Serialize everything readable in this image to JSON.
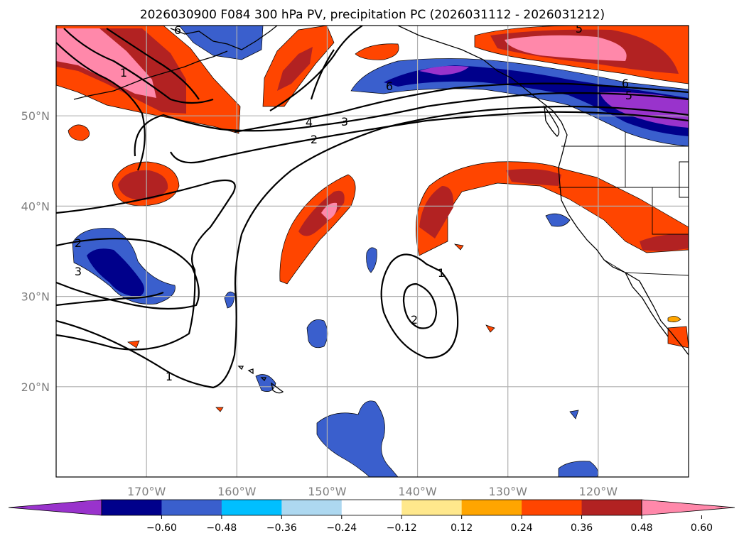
{
  "title": "2026030900 F084 300 hPa PV, precipitation PC (2026031112 - 2026031212)",
  "axes": {
    "lat_ticks": [
      {
        "value": 50,
        "label": "50°N"
      },
      {
        "value": 40,
        "label": "40°N"
      },
      {
        "value": 30,
        "label": "30°N"
      },
      {
        "value": 20,
        "label": "20°N"
      }
    ],
    "lon_ticks": [
      {
        "value": -170,
        "label": "170°W"
      },
      {
        "value": -160,
        "label": "160°W"
      },
      {
        "value": -150,
        "label": "150°W"
      },
      {
        "value": -140,
        "label": "140°W"
      },
      {
        "value": -130,
        "label": "130°W"
      },
      {
        "value": -120,
        "label": "120°W"
      }
    ],
    "lon_range": [
      -180,
      -110
    ],
    "lat_range": [
      10,
      60
    ],
    "grid": true
  },
  "colorbar": {
    "levels": [
      -0.6,
      -0.48,
      -0.36,
      -0.24,
      -0.12,
      0.12,
      0.24,
      0.36,
      0.48,
      0.6
    ],
    "tick_labels": [
      "−0.60",
      "−0.48",
      "−0.36",
      "−0.24",
      "−0.12",
      "0.12",
      "0.24",
      "0.36",
      "0.48",
      "0.60"
    ],
    "colors": [
      "#9933cc",
      "#00008b",
      "#3a5fcd",
      "#00bfff",
      "#add8f0",
      "#ffffff",
      "#ffe88c",
      "#ffa500",
      "#ff4500",
      "#b22222",
      "#ff88aa"
    ],
    "extend": "both"
  },
  "contour_labels": [
    "1",
    "2",
    "3",
    "4",
    "5",
    "6"
  ],
  "chart_data": {
    "type": "heatmap",
    "title": "2026030900 F084 300 hPa PV, precipitation PC (2026031112 - 2026031212)",
    "fields": [
      "300 hPa PV (contours)",
      "precipitation PC (shaded)"
    ],
    "pv_contour_levels": [
      1,
      2,
      3,
      4,
      5,
      6
    ],
    "shading_levels": [
      -0.6,
      -0.48,
      -0.36,
      -0.24,
      -0.12,
      0.12,
      0.24,
      0.36,
      0.48,
      0.6
    ],
    "xlim": [
      -180,
      -110
    ],
    "ylim": [
      10,
      60
    ]
  }
}
